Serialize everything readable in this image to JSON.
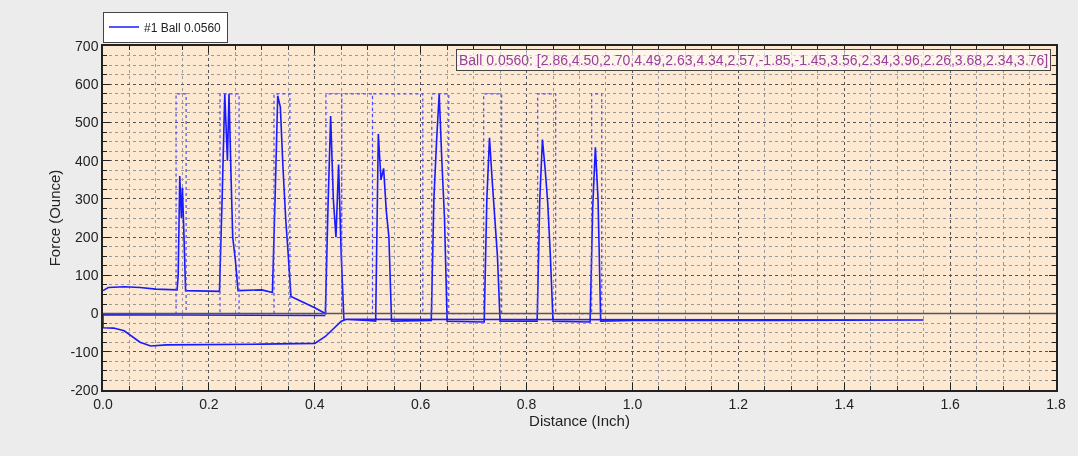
{
  "chart_data": {
    "type": "line",
    "xlabel": "Distance (Inch)",
    "ylabel": "Force (Ounce)",
    "xlim": [
      0,
      1.8
    ],
    "xticks": [
      {
        "value": 0,
        "label": "0.0"
      },
      {
        "value": 0.2,
        "label": "0.2"
      },
      {
        "value": 0.4,
        "label": "0.4"
      },
      {
        "value": 0.6,
        "label": "0.6"
      },
      {
        "value": 0.8,
        "label": "0.8"
      },
      {
        "value": 1.0,
        "label": "1.0"
      },
      {
        "value": 1.2,
        "label": "1.2"
      },
      {
        "value": 1.4,
        "label": "1.4"
      },
      {
        "value": 1.6,
        "label": "1.6"
      },
      {
        "value": 1.8,
        "label": "1.8"
      }
    ],
    "ylim": [
      -200,
      700
    ],
    "yticks": [
      -200,
      -100,
      0,
      100,
      200,
      300,
      400,
      500,
      600,
      700
    ],
    "grid": true,
    "legend": "top left",
    "marker": "none",
    "annotations": [
      "Ball 0.0560: [2.86,4.50,2.70,4.49,2.63,4.34,2.57,-1.85,-1.45,3.56,2.34,3.96,2.26,3.68,2.34,3.76]"
    ],
    "ref_lines": [
      {
        "axis": "y",
        "value": 0,
        "label": null,
        "color": "#555555"
      }
    ],
    "series": [
      {
        "name": "#1 Ball 0.0560",
        "color": "#1a1aff",
        "line_style": "solid",
        "x": [
          0,
          0.01,
          0.04,
          0.07,
          0.1,
          0.14,
          0.142,
          0.145,
          0.148,
          0.15,
          0.153,
          0.156,
          0.22,
          0.225,
          0.23,
          0.235,
          0.238,
          0.242,
          0.245,
          0.25,
          0.255,
          0.3,
          0.32,
          0.325,
          0.33,
          0.335,
          0.34,
          0.345,
          0.35,
          0.355,
          0.37,
          0.4,
          0.42,
          0.425,
          0.43,
          0.435,
          0.44,
          0.445,
          0.45,
          0.455,
          0.5,
          0.515,
          0.52,
          0.525,
          0.53,
          0.535,
          0.54,
          0.545,
          0.62,
          0.625,
          0.63,
          0.635,
          0.64,
          0.645,
          0.65,
          0.72,
          0.725,
          0.73,
          0.735,
          0.74,
          0.745,
          0.75,
          0.82,
          0.825,
          0.83,
          0.835,
          0.84,
          0.845,
          0.85,
          0.92,
          0.925,
          0.93,
          0.935,
          0.94,
          1.0,
          1.2,
          1.55,
          0.46,
          0.45,
          0.42,
          0.4,
          0.3,
          0.12,
          0.09,
          0.07,
          0.04,
          0.02,
          0,
          0,
          0.42
        ],
        "values": [
          60,
          68,
          70,
          68,
          64,
          62,
          100,
          360,
          250,
          330,
          200,
          60,
          58,
          300,
          575,
          400,
          575,
          350,
          200,
          140,
          60,
          62,
          55,
          300,
          570,
          540,
          380,
          250,
          150,
          45,
          35,
          15,
          0,
          280,
          517,
          300,
          200,
          390,
          150,
          -15,
          -18,
          -20,
          470,
          350,
          380,
          270,
          200,
          -20,
          -18,
          300,
          450,
          575,
          400,
          250,
          -20,
          -22,
          300,
          460,
          350,
          250,
          150,
          -20,
          -20,
          300,
          455,
          380,
          290,
          150,
          -20,
          -22,
          280,
          435,
          300,
          -20,
          -18,
          -18,
          -17,
          -15,
          -20,
          -60,
          -78,
          -80,
          -82,
          -85,
          -75,
          -45,
          -38,
          -37,
          -3,
          -5
        ]
      },
      {
        "color": "#4a4aff",
        "line_style": "dotted",
        "x": [
          0,
          0.138,
          0.138,
          0.157,
          0.157,
          0.221,
          0.221,
          0.257,
          0.257,
          0.323,
          0.323,
          0.353,
          0.353,
          0.421,
          0.421,
          0.451,
          0.451,
          0.451,
          0.451,
          0.509,
          0.509,
          0.509,
          0.509,
          0.604,
          0.604,
          0.621,
          0.621,
          0.653,
          0.653,
          0.719,
          0.719,
          0.753,
          0.753,
          0.821,
          0.821,
          0.855,
          0.855,
          0.923,
          0.923,
          0.942,
          0.942
        ],
        "values": [
          0,
          0,
          575,
          575,
          0,
          0,
          575,
          575,
          0,
          0,
          575,
          575,
          0,
          0,
          575,
          575,
          0,
          0,
          575,
          575,
          0,
          0,
          575,
          575,
          0,
          0,
          575,
          575,
          0,
          0,
          575,
          575,
          0,
          0,
          575,
          575,
          0,
          0,
          575,
          575,
          0
        ]
      }
    ]
  }
}
